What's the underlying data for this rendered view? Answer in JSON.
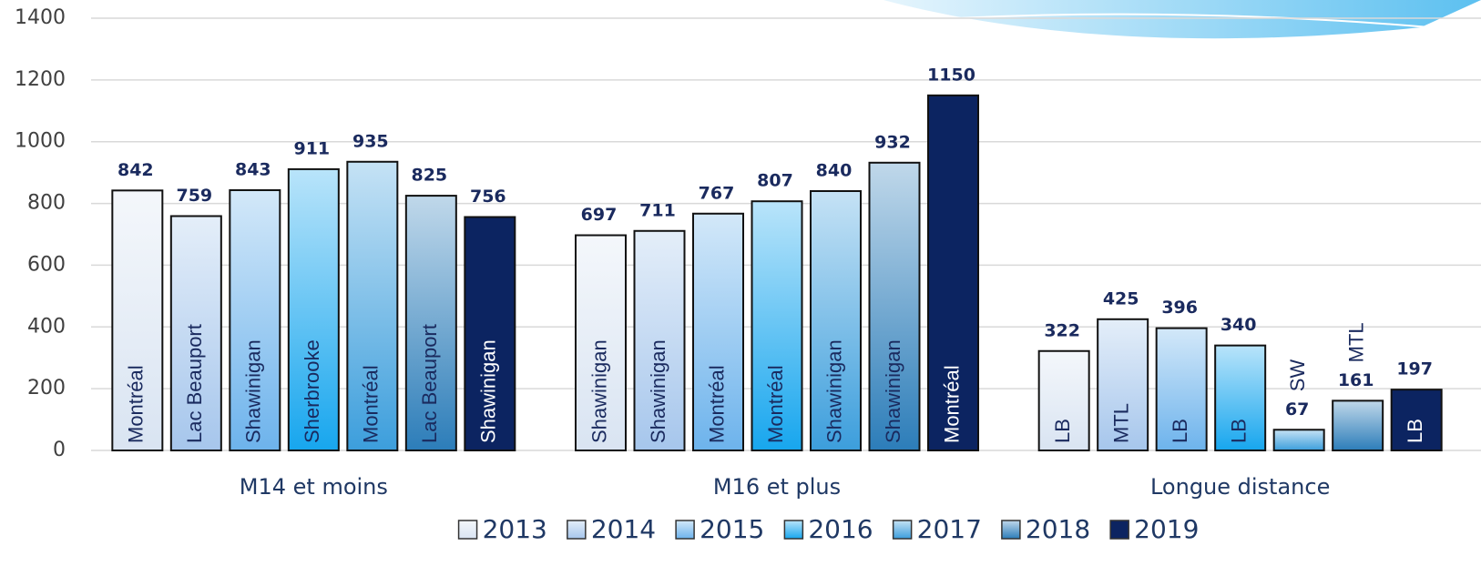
{
  "chart_data": {
    "type": "bar",
    "categories": [
      "M14 et moins",
      "M16 et plus",
      "Longue distance"
    ],
    "series": [
      {
        "name": "2013",
        "color": "#d9e4f2",
        "values": [
          842,
          697,
          322
        ],
        "bar_labels": [
          "Montréal",
          "Shawinigan",
          "LB"
        ]
      },
      {
        "name": "2014",
        "color": "#a6c6ec",
        "values": [
          759,
          711,
          425
        ],
        "bar_labels": [
          "Lac Beauport",
          "Shawinigan",
          "MTL"
        ]
      },
      {
        "name": "2015",
        "color": "#6db3ec",
        "values": [
          843,
          767,
          396
        ],
        "bar_labels": [
          "Shawinigan",
          "Montréal",
          "LB"
        ]
      },
      {
        "name": "2016",
        "color": "#17a6ee",
        "values": [
          911,
          807,
          340
        ],
        "bar_labels": [
          "Sherbrooke",
          "Montréal",
          "LB"
        ]
      },
      {
        "name": "2017",
        "color": "#3c9edc",
        "values": [
          935,
          840,
          67
        ],
        "bar_labels": [
          "Montréal",
          "Shawinigan",
          "SW"
        ]
      },
      {
        "name": "2018",
        "color": "#2c7db9",
        "values": [
          825,
          932,
          161
        ],
        "bar_labels": [
          "Lac Beauport",
          "Shawinigan",
          "MTL"
        ]
      },
      {
        "name": "2019",
        "color": "#0c2461",
        "values": [
          756,
          1150,
          197
        ],
        "bar_labels": [
          "Shawinigan",
          "Montréal",
          "LB"
        ]
      }
    ],
    "ylim": [
      0,
      1400
    ],
    "yticks": [
      0,
      200,
      400,
      600,
      800,
      1000,
      1200,
      1400
    ],
    "grid": true,
    "legend": "bottom"
  }
}
